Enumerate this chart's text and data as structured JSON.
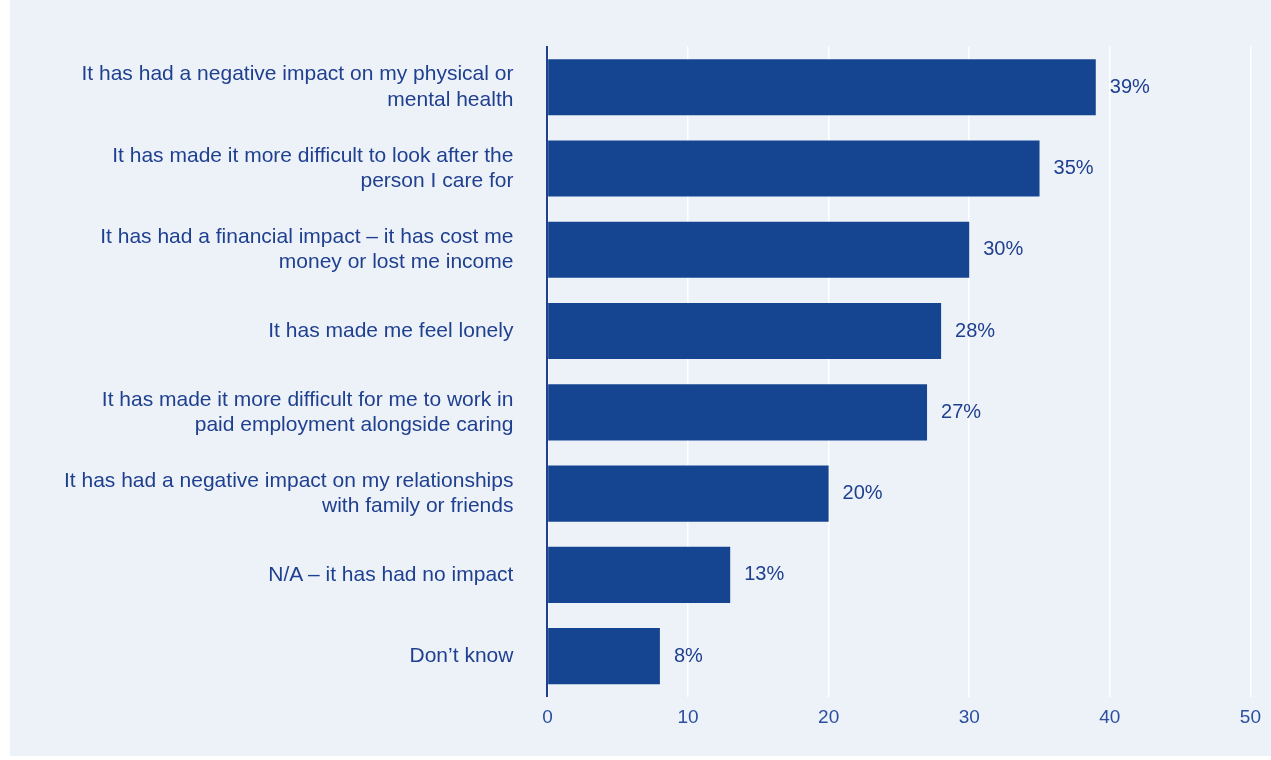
{
  "chart_data": {
    "type": "bar",
    "orientation": "horizontal",
    "categories": [
      "It has had a negative impact on my physical or mental health",
      "It has made it more difficult to look after the person I care for",
      "It has had a financial impact – it has cost me money or lost me income",
      "It has made me feel lonely",
      "It has made it more difficult for me to work in paid employment alongside caring",
      "It has had a negative impact on my relationships with family or friends",
      "N/A – it has had no impact",
      "Don’t know"
    ],
    "values": [
      39,
      35,
      30,
      28,
      27,
      20,
      13,
      8
    ],
    "value_labels": [
      "39%",
      "35%",
      "30%",
      "28%",
      "27%",
      "20%",
      "13%",
      "8%"
    ],
    "color": "#154591",
    "xlim": [
      0,
      50
    ],
    "xticks": [
      0,
      10,
      20,
      30,
      40,
      50
    ],
    "grid": "x"
  }
}
